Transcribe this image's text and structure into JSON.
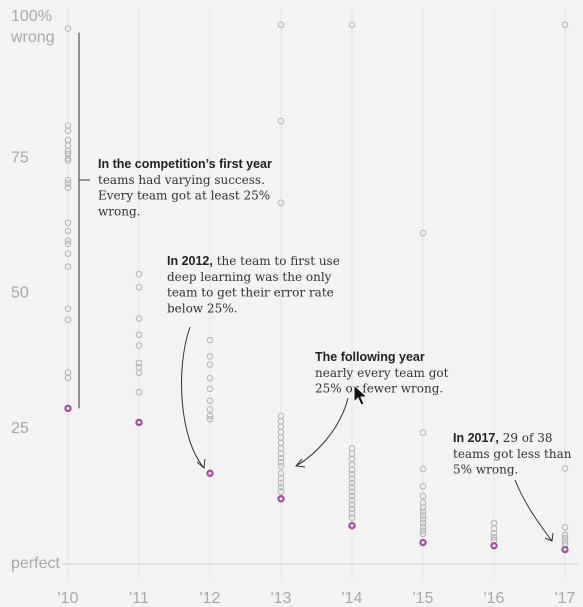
{
  "chart_data": {
    "type": "scatter",
    "title": "",
    "xlabel": "",
    "ylabel": "",
    "ylim": [
      0,
      100
    ],
    "y_ticks": [
      {
        "value": 100,
        "label": [
          "100%",
          "wrong"
        ]
      },
      {
        "value": 75,
        "label": [
          "75"
        ]
      },
      {
        "value": 50,
        "label": [
          "50"
        ]
      },
      {
        "value": 25,
        "label": [
          "25"
        ]
      },
      {
        "value": 0,
        "label": [
          "perfect"
        ]
      }
    ],
    "x_ticks": [
      "'10",
      "'11",
      "'12",
      "'13",
      "'14",
      "'15",
      "'16",
      "'17"
    ],
    "grid": true,
    "colors": {
      "entry": "#b4b4b4",
      "best": "#a64e9e",
      "text": "#222222"
    },
    "series": [
      {
        "x": "'10",
        "values": [
          98.6,
          80.7,
          79.7,
          78,
          77,
          76,
          75.4,
          74.6,
          74.2,
          70.6,
          70,
          69.2,
          62.7,
          61.2,
          59.4,
          58.8,
          57,
          54.6,
          46.8,
          44.8,
          35,
          34,
          28.4
        ],
        "best": 28.4
      },
      {
        "x": "'11",
        "values": [
          53.2,
          50.8,
          45,
          42,
          40,
          36.8,
          36,
          35,
          31.4,
          25.8
        ],
        "best": 25.8
      },
      {
        "x": "'12",
        "values": [
          41,
          38,
          36.5,
          34,
          32,
          29.8,
          28.2,
          27,
          26.4,
          16.4
        ],
        "best": 16.4
      },
      {
        "x": "'13",
        "values": [
          99.3,
          81.5,
          66.4,
          27,
          26,
          25,
          24,
          23,
          22,
          21,
          20,
          19.2,
          18.4,
          17.7,
          16.4,
          15.5,
          14.6,
          13.8,
          13,
          11.7
        ],
        "best": 11.7
      },
      {
        "x": "'14",
        "values": [
          99.3,
          21,
          20,
          19,
          18,
          17,
          16.2,
          15.4,
          14.6,
          13.8,
          13,
          12.2,
          11.4,
          10.6,
          9.8,
          9,
          8.2,
          6.7
        ],
        "best": 6.7
      },
      {
        "x": "'15",
        "values": [
          60.8,
          23.9,
          17.2,
          14,
          12.2,
          11,
          10,
          9.3,
          8.6,
          7.9,
          7.2,
          6.5,
          5.8,
          5.2,
          3.6
        ],
        "best": 3.6
      },
      {
        "x": "'16",
        "values": [
          7.2,
          6.2,
          5.3,
          4.6,
          4,
          3
        ],
        "best": 3
      },
      {
        "x": "'17",
        "values": [
          99.3,
          17.3,
          6.4,
          5,
          4.4,
          3.8,
          3.2,
          2.3
        ],
        "best": 2.3
      }
    ],
    "annotations": [
      {
        "bold": "In the competition’s first year",
        "lines": [
          "teams had varying success.",
          "Every team got at least 25%",
          "wrong."
        ]
      },
      {
        "bold": "In 2012,",
        "lines": [
          " the team to first use",
          "deep learning was the only",
          "team to get their error rate",
          "below 25%."
        ]
      },
      {
        "bold": "The following year",
        "lines": [
          "nearly every team got",
          "25% or fewer wrong."
        ]
      },
      {
        "bold": "In 2017,",
        "lines": [
          " 29 of 38",
          "teams got less than",
          "5% wrong."
        ]
      }
    ]
  }
}
